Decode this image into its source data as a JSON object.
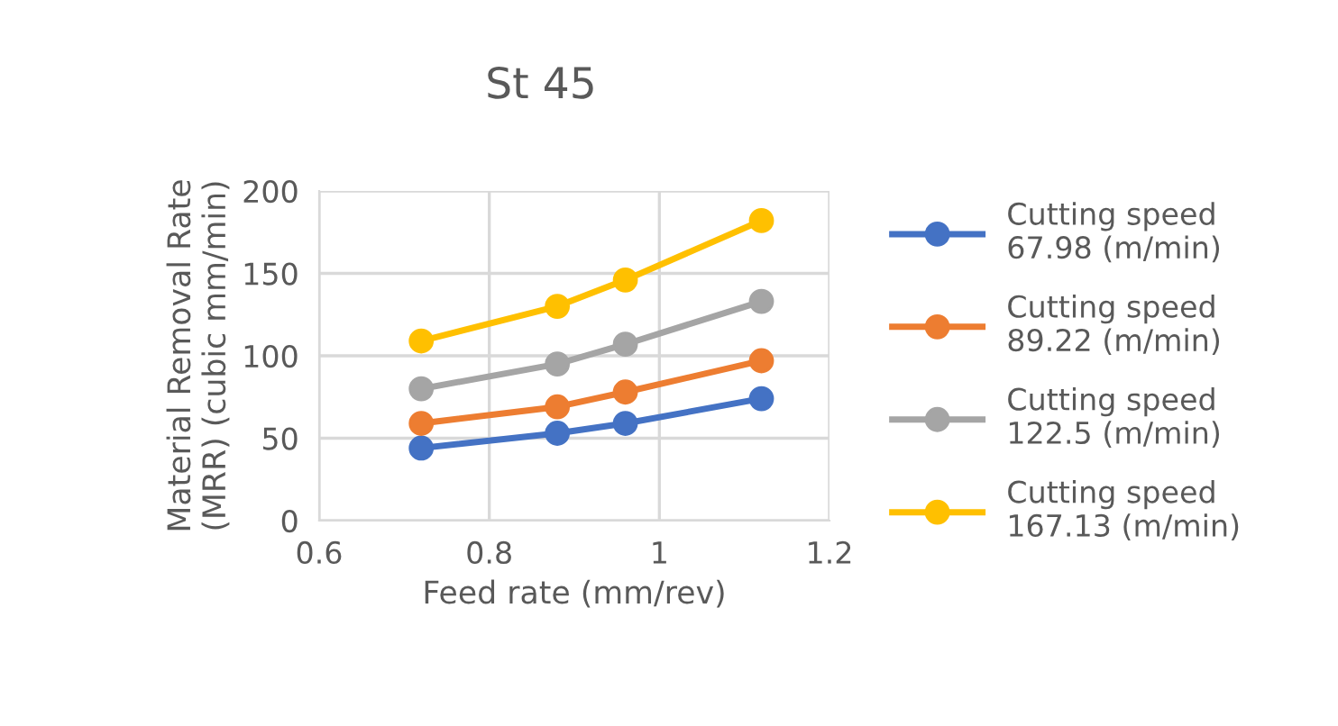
{
  "chart_data": {
    "type": "line",
    "title": "St 45",
    "xlabel": "Feed rate (mm/rev)",
    "ylabel": "Material Removal Rate\n(MRR) (cubic mm/min)",
    "x": [
      0.72,
      0.88,
      0.96,
      1.12
    ],
    "series": [
      {
        "name": "Cutting speed\n67.98 (m/min)",
        "color": "#4472c4",
        "values": [
          44,
          53,
          59,
          74
        ]
      },
      {
        "name": "Cutting speed\n89.22 (m/min)",
        "color": "#ed7d31",
        "values": [
          59,
          69,
          78,
          97
        ]
      },
      {
        "name": "Cutting speed\n122.5 (m/min)",
        "color": "#a5a5a5",
        "values": [
          80,
          95,
          107,
          133
        ]
      },
      {
        "name": "Cutting speed\n167.13 (m/min)",
        "color": "#ffc000",
        "values": [
          109,
          130,
          146,
          182
        ]
      }
    ],
    "xlim": [
      0.6,
      1.2
    ],
    "xticks": [
      0.6,
      0.8,
      1,
      1.2
    ],
    "ylim": [
      0,
      200
    ],
    "yticks": [
      0,
      50,
      100,
      150,
      200
    ],
    "grid": true,
    "legend": "right",
    "marker": "circle",
    "line_style": "solid"
  }
}
